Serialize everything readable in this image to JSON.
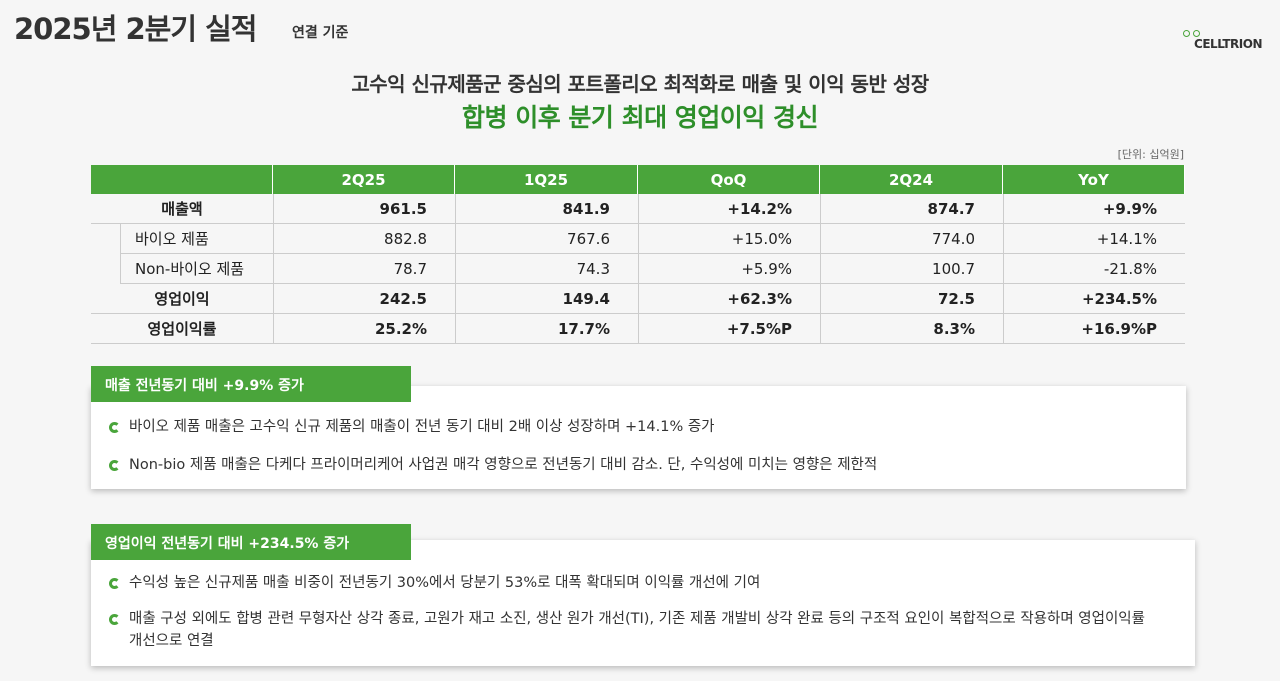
{
  "header": {
    "title": "2025년 2분기 실적",
    "subtitle": "연결 기준",
    "logo": "CELLTRION"
  },
  "headline": {
    "line1": "고수익 신규제품군 중심의 포트폴리오 최적화로 매출 및 이익 동반 성장",
    "line2": "합병 이후 분기 최대 영업이익 경신"
  },
  "table": {
    "unit": "[단위: 십억원]",
    "columns": [
      "2Q25",
      "1Q25",
      "QoQ",
      "2Q24",
      "YoY"
    ],
    "rows": [
      {
        "label": "매출액",
        "cells": [
          "961.5",
          "841.9",
          "+14.2%",
          "874.7",
          "+9.9%"
        ],
        "sub_rows": [
          {
            "label": "바이오 제품",
            "cells": [
              "882.8",
              "767.6",
              "+15.0%",
              "774.0",
              "+14.1%"
            ]
          },
          {
            "label": "Non-바이오 제품",
            "cells": [
              "78.7",
              "74.3",
              "+5.9%",
              "100.7",
              "-21.8%"
            ]
          }
        ]
      },
      {
        "label": "영업이익",
        "cells": [
          "242.5",
          "149.4",
          "+62.3%",
          "72.5",
          "+234.5%"
        ]
      },
      {
        "label": "영업이익률",
        "cells": [
          "25.2%",
          "17.7%",
          "+7.5%P",
          "8.3%",
          "+16.9%P"
        ]
      }
    ]
  },
  "sections": [
    {
      "title": "매출 전년동기 대비 +9.9% 증가",
      "bullets": [
        "바이오 제품 매출은 고수익 신규 제품의 매출이 전년 동기 대비 2배 이상 성장하며 +14.1% 증가",
        "Non-bio 제품 매출은 다케다 프라이머리케어 사업권 매각 영향으로 전년동기 대비 감소. 단, 수익성에 미치는 영향은 제한적"
      ]
    },
    {
      "title": "영업이익 전년동기 대비 +234.5% 증가",
      "bullets": [
        "수익성 높은 신규제품 매출 비중이 전년동기 30%에서 당분기 53%로 대폭 확대되며 이익률 개선에 기여",
        "매출 구성 외에도 합병 관련 무형자산 상각 종료, 고원가 재고 소진, 생산 원가 개선(TI), 기존 제품 개발비 상각 완료 등의 구조적 요인이 복합적으로 작용하며 영업이익률 개선으로 연결"
      ]
    }
  ]
}
